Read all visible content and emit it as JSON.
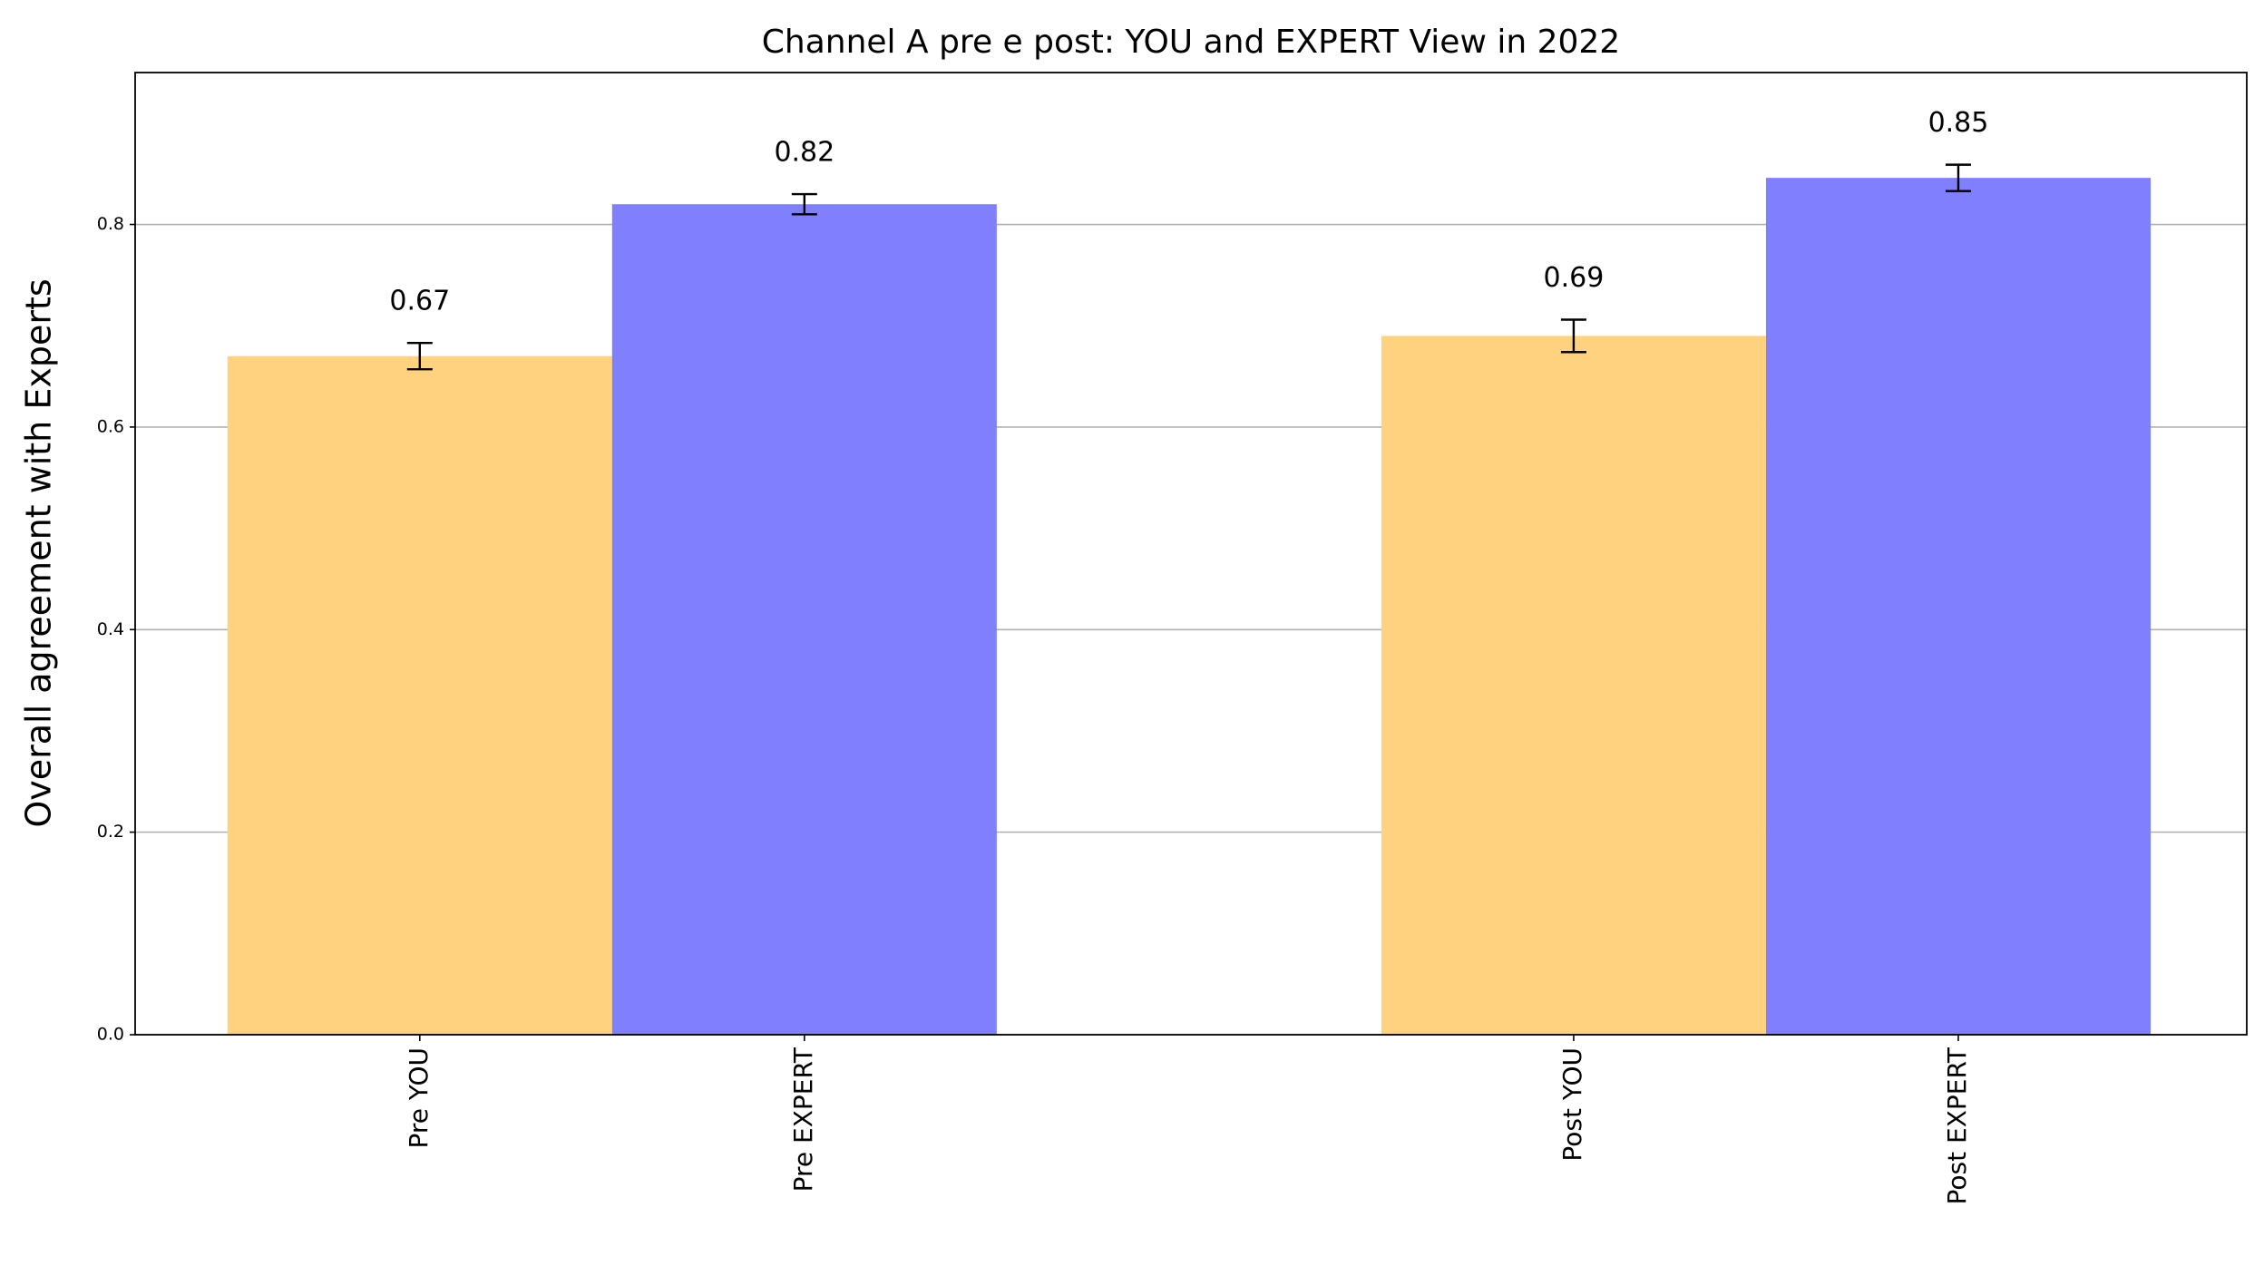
{
  "chart_data": {
    "type": "bar",
    "title": "Channel A pre e post: YOU and EXPERT View in 2022",
    "y_label": "Overall agreement with Experts",
    "x": [
      0,
      1,
      3,
      4
    ],
    "values": [
      0.67,
      0.82,
      0.69,
      0.846
    ],
    "value_labels": [
      "0.67",
      "0.82",
      "0.69",
      "0.85"
    ],
    "errors": [
      0.013,
      0.01,
      0.016,
      0.013
    ],
    "colors": [
      "#ffd280",
      "#8080ff",
      "#ffd280",
      "#8080ff"
    ],
    "xlim": [
      -0.74,
      4.75
    ],
    "xticks": [
      {
        "value": 0,
        "label": "Pre YOU"
      },
      {
        "value": 1,
        "label": "Pre EXPERT"
      },
      {
        "value": 3,
        "label": "Post YOU"
      },
      {
        "value": 4,
        "label": "Post EXPERT"
      }
    ],
    "ylim": [
      0,
      0.95
    ],
    "yticks": [
      {
        "value": 0,
        "label": "0.0"
      },
      0.2,
      0.4,
      0.6,
      0.8
    ],
    "grid": true
  }
}
